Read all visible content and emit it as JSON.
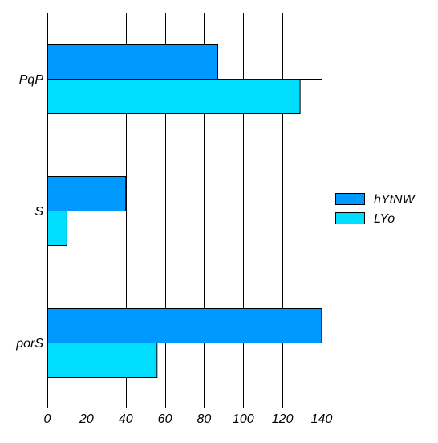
{
  "chart_data": {
    "type": "bar",
    "orientation": "horizontal",
    "categories": [
      "PqP",
      "S",
      "porS"
    ],
    "series": [
      {
        "name": "hYtNW",
        "values": [
          87,
          40,
          140
        ],
        "color": "#0099ff"
      },
      {
        "name": "LYo",
        "values": [
          129,
          10,
          56
        ],
        "color": "#00ddff"
      }
    ],
    "xlim": [
      0,
      140
    ],
    "xticks": [
      0,
      20,
      40,
      60,
      80,
      100,
      120,
      140
    ],
    "grid": true,
    "legend_position": "right",
    "title": "",
    "xlabel": "",
    "ylabel": ""
  }
}
